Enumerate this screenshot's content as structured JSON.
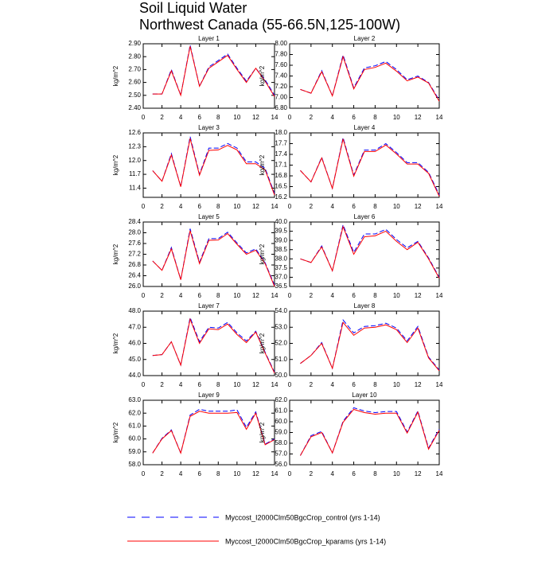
{
  "title": "Soil Liquid Water",
  "subtitle": "Northwest Canada (55-66.5N,125-100W)",
  "chart_data": [
    {
      "type": "line",
      "title": "Layer 1",
      "y_label": "kg/m^2",
      "x": [
        1,
        2,
        3,
        4,
        5,
        6,
        7,
        8,
        9,
        10,
        11,
        12,
        13,
        14
      ],
      "xlim": [
        0,
        14
      ],
      "xticks": [
        0,
        2,
        4,
        6,
        8,
        10,
        12,
        14
      ],
      "ylim": [
        2.4,
        2.9
      ],
      "yticks": [
        {
          "value": 2.4,
          "label": "2.40"
        },
        {
          "value": 2.5,
          "label": "2.50"
        },
        {
          "value": 2.6,
          "label": "2.60"
        },
        {
          "value": 2.7,
          "label": "2.70"
        },
        {
          "value": 2.8,
          "label": "2.80"
        },
        {
          "value": 2.9,
          "label": "2.90"
        }
      ],
      "series": [
        {
          "name": "Myccost_I2000Clm50BgcCrop_control (yrs 1-14)",
          "color": "#0000ff",
          "dash": true,
          "values": [
            2.51,
            2.51,
            2.7,
            2.5,
            2.89,
            2.57,
            2.72,
            2.77,
            2.82,
            2.71,
            2.61,
            2.71,
            2.62,
            2.5
          ]
        },
        {
          "name": "Myccost_I2000Clm50BgcCrop_kparams (yrs 1-14)",
          "color": "#ff0000",
          "dash": false,
          "values": [
            2.51,
            2.51,
            2.69,
            2.5,
            2.88,
            2.57,
            2.71,
            2.76,
            2.81,
            2.7,
            2.6,
            2.71,
            2.61,
            2.49
          ]
        }
      ]
    },
    {
      "type": "line",
      "title": "Layer 2",
      "y_label": "kg/m^2",
      "x": [
        1,
        2,
        3,
        4,
        5,
        6,
        7,
        8,
        9,
        10,
        11,
        12,
        13,
        14
      ],
      "xlim": [
        0,
        14
      ],
      "xticks": [
        0,
        2,
        4,
        6,
        8,
        10,
        12,
        14
      ],
      "ylim": [
        6.8,
        8.0
      ],
      "yticks": [
        {
          "value": 6.8,
          "label": "6.80"
        },
        {
          "value": 7.0,
          "label": "7.00"
        },
        {
          "value": 7.2,
          "label": "7.20"
        },
        {
          "value": 7.4,
          "label": "7.40"
        },
        {
          "value": 7.6,
          "label": "7.60"
        },
        {
          "value": 7.8,
          "label": "7.80"
        },
        {
          "value": 8.0,
          "label": "8.00"
        }
      ],
      "series": [
        {
          "color": "#0000ff",
          "dash": true,
          "values": [
            7.15,
            7.08,
            7.5,
            7.03,
            7.79,
            7.18,
            7.55,
            7.59,
            7.67,
            7.52,
            7.33,
            7.4,
            7.28,
            6.95
          ]
        },
        {
          "color": "#ff0000",
          "dash": false,
          "values": [
            7.15,
            7.08,
            7.48,
            7.03,
            7.76,
            7.16,
            7.52,
            7.56,
            7.64,
            7.49,
            7.31,
            7.38,
            7.27,
            6.93
          ]
        }
      ]
    },
    {
      "type": "line",
      "title": "Layer 3",
      "y_label": "kg/m^2",
      "x": [
        1,
        2,
        3,
        4,
        5,
        6,
        7,
        8,
        9,
        10,
        11,
        12,
        13,
        14
      ],
      "xlim": [
        0,
        14
      ],
      "xticks": [
        0,
        2,
        4,
        6,
        8,
        10,
        12,
        14
      ],
      "ylim": [
        11.2,
        12.6
      ],
      "yticks": [
        11.4,
        11.7,
        {
          "value": 12.0,
          "label": "12.0"
        },
        12.3,
        12.6
      ],
      "series": [
        {
          "color": "#0000ff",
          "dash": true,
          "values": [
            11.78,
            11.55,
            12.15,
            11.43,
            12.52,
            11.7,
            12.27,
            12.27,
            12.37,
            12.27,
            11.97,
            11.97,
            11.83,
            11.28
          ]
        },
        {
          "color": "#ff0000",
          "dash": false,
          "values": [
            11.78,
            11.55,
            12.12,
            11.43,
            12.48,
            11.68,
            12.22,
            12.23,
            12.33,
            12.23,
            11.93,
            11.93,
            11.8,
            11.25
          ]
        }
      ]
    },
    {
      "type": "line",
      "title": "Layer 4",
      "y_label": "kg/m^2",
      "x": [
        1,
        2,
        3,
        4,
        5,
        6,
        7,
        8,
        9,
        10,
        11,
        12,
        13,
        14
      ],
      "xlim": [
        0,
        14
      ],
      "xticks": [
        0,
        2,
        4,
        6,
        8,
        10,
        12,
        14
      ],
      "ylim": [
        16.2,
        18.0
      ],
      "yticks": [
        16.2,
        16.5,
        16.8,
        17.1,
        17.4,
        17.7,
        {
          "value": 18.0,
          "label": "18.0"
        }
      ],
      "series": [
        {
          "color": "#0000ff",
          "dash": true,
          "values": [
            16.95,
            16.63,
            17.32,
            16.45,
            17.87,
            16.82,
            17.52,
            17.52,
            17.7,
            17.45,
            17.17,
            17.17,
            16.9,
            16.27
          ]
        },
        {
          "color": "#ff0000",
          "dash": false,
          "values": [
            16.95,
            16.63,
            17.3,
            16.45,
            17.83,
            16.79,
            17.48,
            17.48,
            17.66,
            17.41,
            17.13,
            17.13,
            16.87,
            16.23
          ]
        }
      ]
    },
    {
      "type": "line",
      "title": "Layer 5",
      "y_label": "kg/m^2",
      "x": [
        1,
        2,
        3,
        4,
        5,
        6,
        7,
        8,
        9,
        10,
        11,
        12,
        13,
        14
      ],
      "xlim": [
        0,
        14
      ],
      "xticks": [
        0,
        2,
        4,
        6,
        8,
        10,
        12,
        14
      ],
      "ylim": [
        26.0,
        28.4
      ],
      "yticks": [
        {
          "value": 26.0,
          "label": "26.0"
        },
        26.4,
        26.8,
        27.2,
        27.6,
        {
          "value": 28.0,
          "label": "28.0"
        },
        28.4
      ],
      "series": [
        {
          "color": "#0000ff",
          "dash": true,
          "values": [
            26.95,
            26.6,
            27.45,
            26.25,
            28.15,
            26.9,
            27.78,
            27.78,
            28.02,
            27.62,
            27.25,
            27.4,
            26.88,
            26.05
          ]
        },
        {
          "color": "#ff0000",
          "dash": false,
          "values": [
            26.95,
            26.6,
            27.4,
            26.25,
            28.08,
            26.85,
            27.72,
            27.73,
            27.97,
            27.57,
            27.2,
            27.35,
            26.85,
            26.0
          ]
        }
      ]
    },
    {
      "type": "line",
      "title": "Layer 6",
      "y_label": "kg/m^2",
      "x": [
        1,
        2,
        3,
        4,
        5,
        6,
        7,
        8,
        9,
        10,
        11,
        12,
        13,
        14
      ],
      "xlim": [
        0,
        14
      ],
      "xticks": [
        0,
        2,
        4,
        6,
        8,
        10,
        12,
        14
      ],
      "ylim": [
        36.5,
        40.0
      ],
      "yticks": [
        36.5,
        {
          "value": 37.0,
          "label": "37.0"
        },
        37.5,
        {
          "value": 38.0,
          "label": "38.0"
        },
        38.5,
        {
          "value": 39.0,
          "label": "39.0"
        },
        39.5,
        {
          "value": 40.0,
          "label": "40.0"
        }
      ],
      "series": [
        {
          "color": "#0000ff",
          "dash": true,
          "values": [
            38.0,
            37.8,
            38.7,
            37.35,
            39.85,
            38.35,
            39.35,
            39.35,
            39.6,
            39.05,
            38.6,
            38.95,
            38.05,
            37.0
          ]
        },
        {
          "color": "#ff0000",
          "dash": false,
          "values": [
            38.0,
            37.8,
            38.65,
            37.35,
            39.75,
            38.25,
            39.2,
            39.25,
            39.5,
            38.95,
            38.5,
            38.9,
            38.0,
            36.95
          ]
        }
      ]
    },
    {
      "type": "line",
      "title": "Layer 7",
      "y_label": "kg/m^2",
      "x": [
        1,
        2,
        3,
        4,
        5,
        6,
        7,
        8,
        9,
        10,
        11,
        12,
        13,
        14
      ],
      "xlim": [
        0,
        14
      ],
      "xticks": [
        0,
        2,
        4,
        6,
        8,
        10,
        12,
        14
      ],
      "ylim": [
        44.0,
        48.0
      ],
      "yticks": [
        {
          "value": 44.0,
          "label": "44.0"
        },
        {
          "value": 45.0,
          "label": "45.0"
        },
        {
          "value": 46.0,
          "label": "46.0"
        },
        {
          "value": 47.0,
          "label": "47.0"
        },
        {
          "value": 48.0,
          "label": "48.0"
        }
      ],
      "series": [
        {
          "color": "#0000ff",
          "dash": true,
          "values": [
            45.25,
            45.3,
            46.1,
            44.65,
            47.6,
            46.1,
            47.0,
            46.95,
            47.3,
            46.65,
            46.15,
            46.75,
            45.45,
            44.2
          ]
        },
        {
          "color": "#ff0000",
          "dash": false,
          "values": [
            45.25,
            45.3,
            46.1,
            44.65,
            47.5,
            46.0,
            46.9,
            46.85,
            47.2,
            46.55,
            46.05,
            46.7,
            45.4,
            44.15
          ]
        }
      ]
    },
    {
      "type": "line",
      "title": "Layer 8",
      "y_label": "kg/m^2",
      "x": [
        1,
        2,
        3,
        4,
        5,
        6,
        7,
        8,
        9,
        10,
        11,
        12,
        13,
        14
      ],
      "xlim": [
        0,
        14
      ],
      "xticks": [
        0,
        2,
        4,
        6,
        8,
        10,
        12,
        14
      ],
      "ylim": [
        50.0,
        54.0
      ],
      "yticks": [
        {
          "value": 50.0,
          "label": "50.0"
        },
        {
          "value": 51.0,
          "label": "51.0"
        },
        {
          "value": 52.0,
          "label": "52.0"
        },
        {
          "value": 53.0,
          "label": "53.0"
        },
        {
          "value": 54.0,
          "label": "54.0"
        }
      ],
      "series": [
        {
          "color": "#0000ff",
          "dash": true,
          "values": [
            50.75,
            51.25,
            52.05,
            50.45,
            53.45,
            52.65,
            53.05,
            53.1,
            53.25,
            52.95,
            52.15,
            53.05,
            51.15,
            50.35
          ]
        },
        {
          "color": "#ff0000",
          "dash": false,
          "values": [
            50.75,
            51.25,
            52.0,
            50.45,
            53.3,
            52.5,
            52.95,
            53.0,
            53.15,
            52.85,
            52.05,
            52.95,
            51.1,
            50.3
          ]
        }
      ]
    },
    {
      "type": "line",
      "title": "Layer 9",
      "y_label": "kg/m^2",
      "x": [
        1,
        2,
        3,
        4,
        5,
        6,
        7,
        8,
        9,
        10,
        11,
        12,
        13,
        14
      ],
      "xlim": [
        0,
        14
      ],
      "xticks": [
        0,
        2,
        4,
        6,
        8,
        10,
        12,
        14
      ],
      "ylim": [
        58.0,
        63.0
      ],
      "yticks": [
        {
          "value": 58.0,
          "label": "58.0"
        },
        {
          "value": 59.0,
          "label": "59.0"
        },
        {
          "value": 60.0,
          "label": "60.0"
        },
        {
          "value": 61.0,
          "label": "61.0"
        },
        {
          "value": 62.0,
          "label": "62.0"
        },
        {
          "value": 63.0,
          "label": "63.0"
        }
      ],
      "series": [
        {
          "color": "#0000ff",
          "dash": true,
          "values": [
            58.9,
            60.05,
            60.7,
            58.9,
            61.85,
            62.3,
            62.15,
            62.15,
            62.15,
            62.25,
            60.9,
            62.1,
            59.6,
            60.0
          ]
        },
        {
          "color": "#ff0000",
          "dash": false,
          "values": [
            58.9,
            60.0,
            60.65,
            58.9,
            61.75,
            62.15,
            62.0,
            62.0,
            62.0,
            62.05,
            60.75,
            62.0,
            59.55,
            59.95
          ]
        }
      ]
    },
    {
      "type": "line",
      "title": "Layer 10",
      "y_label": "kg/m^2",
      "x": [
        1,
        2,
        3,
        4,
        5,
        6,
        7,
        8,
        9,
        10,
        11,
        12,
        13,
        14
      ],
      "xlim": [
        0,
        14
      ],
      "xticks": [
        0,
        2,
        4,
        6,
        8,
        10,
        12,
        14
      ],
      "ylim": [
        56.0,
        62.0
      ],
      "yticks": [
        {
          "value": 56.0,
          "label": "56.0"
        },
        {
          "value": 57.0,
          "label": "57.0"
        },
        {
          "value": 58.0,
          "label": "58.0"
        },
        {
          "value": 59.0,
          "label": "59.0"
        },
        {
          "value": 60.0,
          "label": "60.0"
        },
        {
          "value": 61.0,
          "label": "61.0"
        },
        {
          "value": 62.0,
          "label": "62.0"
        }
      ],
      "series": [
        {
          "color": "#0000ff",
          "dash": true,
          "values": [
            56.85,
            58.7,
            59.1,
            57.1,
            60.05,
            61.3,
            61.0,
            60.85,
            60.95,
            60.95,
            59.05,
            61.0,
            57.55,
            59.3
          ]
        },
        {
          "color": "#ff0000",
          "dash": false,
          "values": [
            56.85,
            58.6,
            59.0,
            57.1,
            59.95,
            61.15,
            60.85,
            60.7,
            60.8,
            60.8,
            58.95,
            60.9,
            57.45,
            59.2
          ]
        }
      ]
    }
  ]
}
